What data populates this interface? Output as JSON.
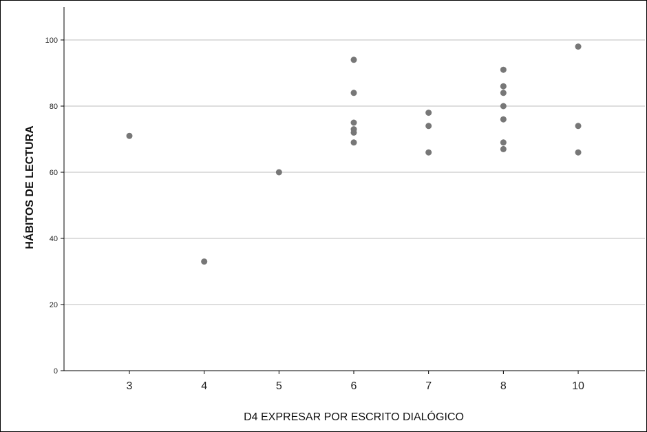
{
  "chart_data": {
    "type": "scatter",
    "title": "",
    "xlabel": "D4 EXPRESAR POR ESCRITO DIALÓGICO",
    "ylabel": "HÁBITOS DE LECTURA",
    "x_categories": [
      "3",
      "4",
      "5",
      "6",
      "7",
      "8",
      "10"
    ],
    "ylim": [
      0,
      110
    ],
    "y_ticks": [
      0,
      20,
      40,
      60,
      80,
      100
    ],
    "grid": "horizontal",
    "points": [
      {
        "x": "3",
        "y": 71
      },
      {
        "x": "4",
        "y": 33
      },
      {
        "x": "5",
        "y": 60
      },
      {
        "x": "6",
        "y": 94
      },
      {
        "x": "6",
        "y": 84
      },
      {
        "x": "6",
        "y": 75
      },
      {
        "x": "6",
        "y": 73
      },
      {
        "x": "6",
        "y": 72
      },
      {
        "x": "6",
        "y": 69
      },
      {
        "x": "7",
        "y": 78
      },
      {
        "x": "7",
        "y": 74
      },
      {
        "x": "7",
        "y": 66
      },
      {
        "x": "8",
        "y": 91
      },
      {
        "x": "8",
        "y": 86
      },
      {
        "x": "8",
        "y": 84
      },
      {
        "x": "8",
        "y": 80
      },
      {
        "x": "8",
        "y": 76
      },
      {
        "x": "8",
        "y": 69
      },
      {
        "x": "8",
        "y": 67
      },
      {
        "x": "10",
        "y": 98
      },
      {
        "x": "10",
        "y": 74
      },
      {
        "x": "10",
        "y": 66
      }
    ],
    "colors": {
      "marker": "#777777",
      "gridline": "#bdbdbd",
      "axis": "#000000"
    }
  }
}
